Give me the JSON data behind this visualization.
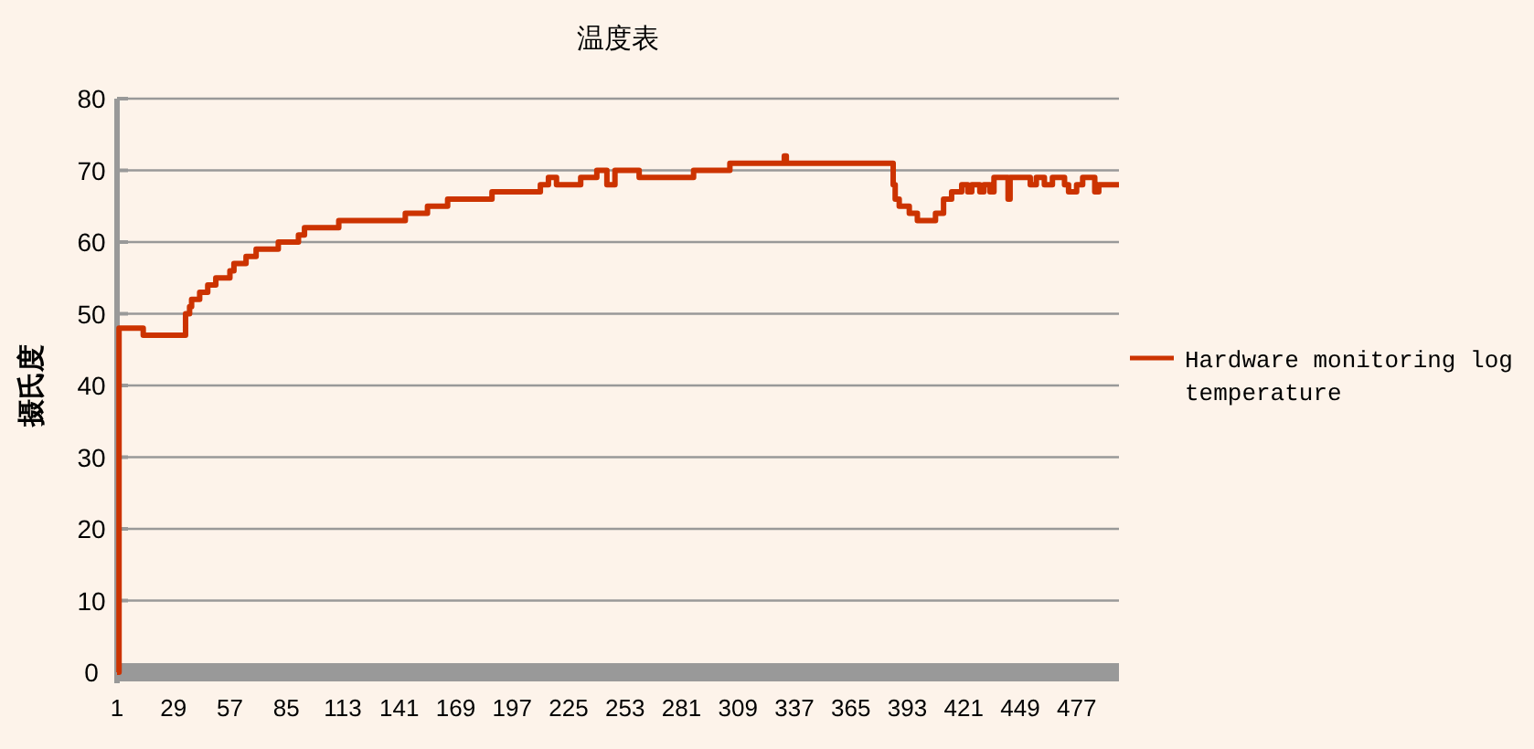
{
  "chart_data": {
    "type": "step",
    "title": "温度表",
    "ylabel": "摄氏度",
    "xlim": [
      1,
      498
    ],
    "xticks": [
      1,
      29,
      57,
      85,
      113,
      141,
      169,
      197,
      225,
      253,
      281,
      309,
      337,
      365,
      393,
      421,
      449,
      477
    ],
    "ylim": [
      0,
      80
    ],
    "yticks": [
      0,
      10,
      20,
      30,
      40,
      50,
      60,
      70,
      80
    ],
    "grid": "y",
    "legend": "right",
    "series": [
      {
        "name": "Hardware monitoring log temperature",
        "color": "#cc3300",
        "x": [
          1,
          2,
          14,
          35,
          37,
          38,
          42,
          46,
          50,
          57,
          59,
          65,
          70,
          81,
          91,
          94,
          111,
          144,
          155,
          165,
          187,
          211,
          215,
          219,
          231,
          239,
          244,
          248,
          260,
          287,
          305,
          332,
          333,
          386,
          387,
          389,
          394,
          398,
          407,
          411,
          415,
          420,
          423,
          425,
          429,
          431,
          434,
          436,
          443,
          444,
          454,
          457,
          461,
          465,
          471,
          473,
          477,
          480,
          486,
          488,
          498
        ],
        "values": [
          0,
          48,
          47,
          50,
          51,
          52,
          53,
          54,
          55,
          56,
          57,
          58,
          59,
          60,
          61,
          62,
          63,
          64,
          65,
          66,
          67,
          68,
          69,
          68,
          69,
          70,
          68,
          70,
          69,
          70,
          71,
          72,
          71,
          68,
          66,
          65,
          64,
          63,
          64,
          66,
          67,
          68,
          67,
          68,
          67,
          68,
          67,
          69,
          66,
          69,
          68,
          69,
          68,
          69,
          68,
          67,
          68,
          69,
          67,
          68,
          68
        ]
      }
    ]
  }
}
